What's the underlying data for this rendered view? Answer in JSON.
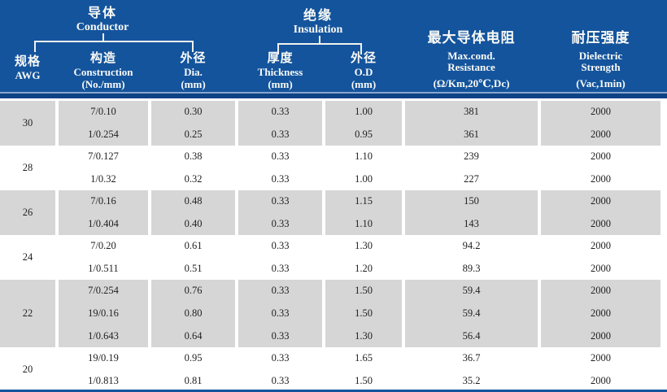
{
  "colors": {
    "header_blue": "#14549D",
    "header_light_line": "#8AA6CD",
    "header_dark_strip": "#0D4284",
    "band_gray": "#D6D6D6",
    "header_text": "#FAFAF6",
    "body_text": "#1F1F1F"
  },
  "groups": {
    "conductor": {
      "zh": "导体",
      "en": "Conductor"
    },
    "insulation": {
      "zh": "绝缘",
      "en": "Insulation"
    }
  },
  "columns": {
    "awg": {
      "zh": "规格",
      "en": "AWG"
    },
    "construction": {
      "zh": "构造",
      "en": "Construction",
      "unit": "(No./mm)"
    },
    "dia": {
      "zh": "外径",
      "en": "Dia.",
      "unit": "(mm)"
    },
    "thickness": {
      "zh": "厚度",
      "en": "Thickness",
      "unit": "(mm)"
    },
    "od": {
      "zh": "外径",
      "en": "O.D",
      "unit": "(mm)"
    },
    "resistance": {
      "zh": "最大导体电阻",
      "en": "Max.cond.",
      "en2": "Resistance",
      "unit": "(Ω/Km,20℃,Dc)"
    },
    "dielectric": {
      "zh": "耐压强度",
      "en": "Dielectric",
      "en2": "Strength",
      "unit": "(Vac,1min)"
    }
  },
  "rows": [
    {
      "awg": "30",
      "shaded": true,
      "entries": [
        {
          "construction": "7/0.10",
          "dia": "0.30",
          "thickness": "0.33",
          "od": "1.00",
          "resistance": "381",
          "dielectric": "2000"
        },
        {
          "construction": "1/0.254",
          "dia": "0.25",
          "thickness": "0.33",
          "od": "0.95",
          "resistance": "361",
          "dielectric": "2000"
        }
      ]
    },
    {
      "awg": "28",
      "shaded": false,
      "entries": [
        {
          "construction": "7/0.127",
          "dia": "0.38",
          "thickness": "0.33",
          "od": "1.10",
          "resistance": "239",
          "dielectric": "2000"
        },
        {
          "construction": "1/0.32",
          "dia": "0.32",
          "thickness": "0.33",
          "od": "1.00",
          "resistance": "227",
          "dielectric": "2000"
        }
      ]
    },
    {
      "awg": "26",
      "shaded": true,
      "entries": [
        {
          "construction": "7/0.16",
          "dia": "0.48",
          "thickness": "0.33",
          "od": "1.15",
          "resistance": "150",
          "dielectric": "2000"
        },
        {
          "construction": "1/0.404",
          "dia": "0.40",
          "thickness": "0.33",
          "od": "1.10",
          "resistance": "143",
          "dielectric": "2000"
        }
      ]
    },
    {
      "awg": "24",
      "shaded": false,
      "entries": [
        {
          "construction": "7/0.20",
          "dia": "0.61",
          "thickness": "0.33",
          "od": "1.30",
          "resistance": "94.2",
          "dielectric": "2000"
        },
        {
          "construction": "1/0.511",
          "dia": "0.51",
          "thickness": "0.33",
          "od": "1.20",
          "resistance": "89.3",
          "dielectric": "2000"
        }
      ]
    },
    {
      "awg": "22",
      "shaded": true,
      "entries": [
        {
          "construction": "7/0.254",
          "dia": "0.76",
          "thickness": "0.33",
          "od": "1.50",
          "resistance": "59.4",
          "dielectric": "2000"
        },
        {
          "construction": "19/0.16",
          "dia": "0.80",
          "thickness": "0.33",
          "od": "1.50",
          "resistance": "59.4",
          "dielectric": "2000"
        },
        {
          "construction": "1/0.643",
          "dia": "0.64",
          "thickness": "0.33",
          "od": "1.30",
          "resistance": "56.4",
          "dielectric": "2000"
        }
      ]
    },
    {
      "awg": "20",
      "shaded": false,
      "entries": [
        {
          "construction": "19/0.19",
          "dia": "0.95",
          "thickness": "0.33",
          "od": "1.65",
          "resistance": "36.7",
          "dielectric": "2000"
        },
        {
          "construction": "1/0.813",
          "dia": "0.81",
          "thickness": "0.33",
          "od": "1.50",
          "resistance": "35.2",
          "dielectric": "2000"
        }
      ]
    }
  ]
}
